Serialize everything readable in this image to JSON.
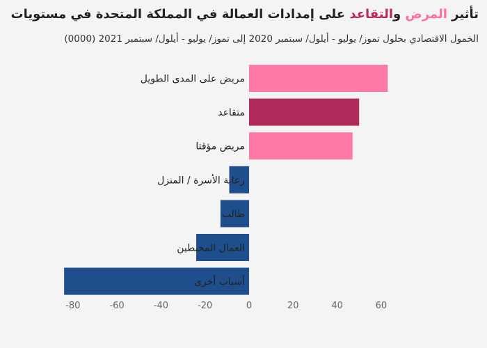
{
  "title": {
    "part1": "تأثير ",
    "sickness": "المرض",
    "part2": " و",
    "retirement": "التقاعد",
    "part3": " على إمدادات العمالة في المملكة المتحدة في مستويات"
  },
  "subtitle": "الخمول الاقتصادي بحلول تموز/ يوليو - أيلول/ سبتمبر 2020 إلى تموز/ يوليو - أيلول/ سبتمبر 2021 (0000)",
  "colors": {
    "sick_highlight": "#ff6f9e",
    "retired_highlight": "#b8285a",
    "bar_pink": "#ff7ba5",
    "bar_maroon": "#b02a5b",
    "bar_blue": "#1f4e8c",
    "background": "#f4f4f4"
  },
  "chart_data": {
    "type": "bar",
    "orientation": "horizontal",
    "categories": [
      "مريض على المدى الطويل",
      "متقاعد",
      "مريض مؤقتا",
      "رعاية الأسرة / المنزل",
      "طالب",
      "العمال المحبطين",
      "أسباب أخرى"
    ],
    "values": [
      63,
      50,
      47,
      -9,
      -13,
      -24,
      -84
    ],
    "bar_colors": [
      "#ff7ba5",
      "#b02a5b",
      "#ff7ba5",
      "#1f4e8c",
      "#1f4e8c",
      "#1f4e8c",
      "#1f4e8c"
    ],
    "xlim": [
      -85,
      65
    ],
    "xticks": [
      -80,
      -60,
      -40,
      -20,
      0,
      20,
      40,
      60
    ],
    "xlabel": "",
    "ylabel": "",
    "grid": false
  }
}
